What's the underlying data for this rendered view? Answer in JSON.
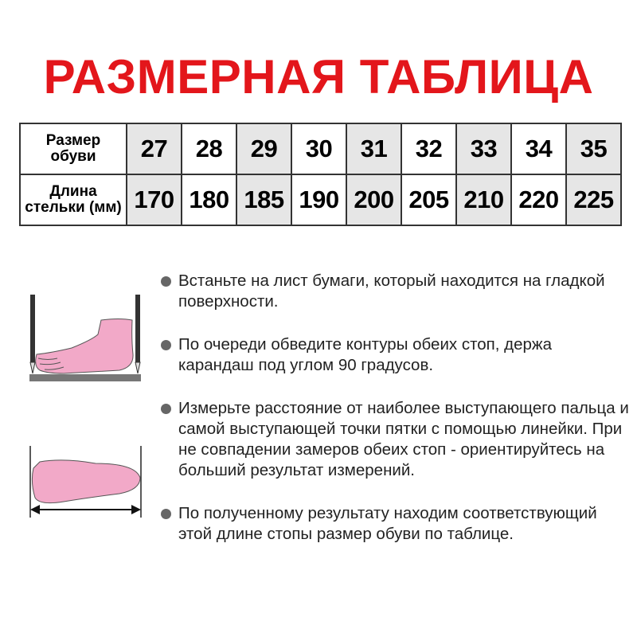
{
  "title": "РАЗМЕРНАЯ ТАБЛИЦА",
  "table": {
    "row_headers": [
      "Размер обуви",
      "Длина стельки (мм)"
    ],
    "sizes": [
      "27",
      "28",
      "29",
      "30",
      "31",
      "32",
      "33",
      "34",
      "35"
    ],
    "lengths": [
      "170",
      "180",
      "185",
      "190",
      "200",
      "205",
      "210",
      "220",
      "225"
    ],
    "shade_color": "#e6e6e6"
  },
  "instructions": [
    "Встаньте на лист бумаги, который находится на гладкой поверхности.",
    "По очереди обведите контуры обеих стоп, держа карандаш под углом 90 градусов.",
    "Измерьте расстояние от наиболее выступающего пальца и самой выступающей точки пятки с помощью линейки. При не совпадении замеров обеих стоп - ориентируйтесь на больший результат измерений.",
    "По полученному результату находим соответствующий этой длине стопы размер обуви по таблице."
  ],
  "colors": {
    "title": "#e3161b",
    "foot": "#f2a9c8",
    "bullet": "#666666"
  },
  "icons": [
    "foot-side-pencils-icon",
    "foot-top-measure-icon"
  ]
}
